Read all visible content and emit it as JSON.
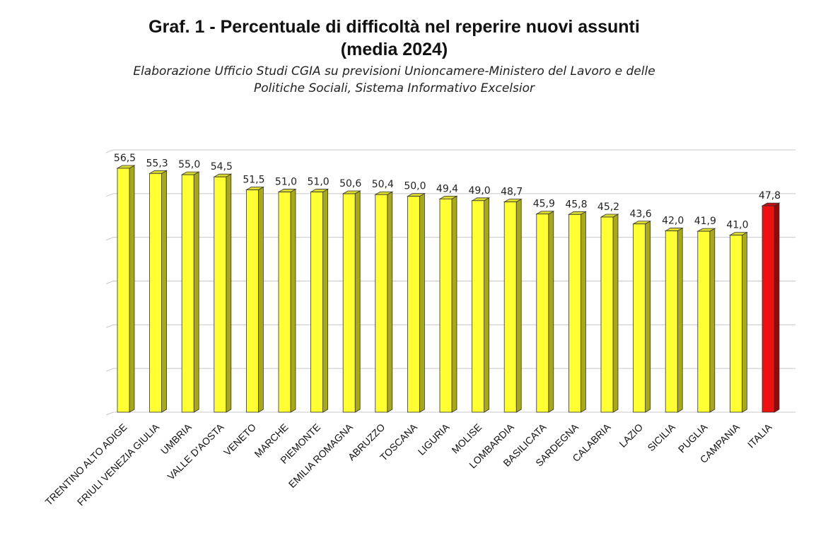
{
  "header": {
    "title_line1": "Graf. 1 - Percentuale di difficoltà nel reperire nuovi assunti",
    "title_line2": "(media 2024)",
    "subtitle_line1": "Elaborazione Ufficio Studi CGIA su previsioni Unioncamere-Ministero del Lavoro e delle",
    "subtitle_line2": "Politiche Sociali, Sistema Informativo Excelsior"
  },
  "colors": {
    "bar_front": "#ffff33",
    "bar_side": "#a8a81c",
    "bar_top": "#d9d92e",
    "highlight_front": "#ee1111",
    "highlight_side": "#8e0b0b",
    "highlight_top": "#c01010",
    "gridline": "#c8c8c8"
  },
  "chart_data": {
    "type": "bar",
    "title": "Graf. 1 - Percentuale di difficoltà nel reperire nuovi assunti (media 2024)",
    "xlabel": "",
    "ylabel": "",
    "ylim": [
      0,
      57
    ],
    "grid": true,
    "legend": "none",
    "highlighted_category": "ITALIA",
    "categories": [
      "TRENTINO ALTO ADIGE",
      "FRIULI VENEZIA GIULIA",
      "UMBRIA",
      "VALLE D'AOSTA",
      "VENETO",
      "MARCHE",
      "PIEMONTE",
      "EMILIA ROMAGNA",
      "ABRUZZO",
      "TOSCANA",
      "LIGURIA",
      "MOLISE",
      "LOMBARDIA",
      "BASILICATA",
      "SARDEGNA",
      "CALABRIA",
      "LAZIO",
      "SICILIA",
      "PUGLIA",
      "CAMPANIA",
      "ITALIA"
    ],
    "values": [
      56.5,
      55.3,
      55.0,
      54.5,
      51.5,
      51.0,
      51.0,
      50.6,
      50.4,
      50.0,
      49.4,
      49.0,
      48.7,
      45.9,
      45.8,
      45.2,
      43.6,
      42.0,
      41.9,
      41.0,
      47.8
    ],
    "value_labels": [
      "56,5",
      "55,3",
      "55,0",
      "54,5",
      "51,5",
      "51,0",
      "51,0",
      "50,6",
      "50,4",
      "50,0",
      "49,4",
      "49,0",
      "48,7",
      "45,9",
      "45,8",
      "45,2",
      "43,6",
      "42,0",
      "41,9",
      "41,0",
      "47,8"
    ]
  }
}
